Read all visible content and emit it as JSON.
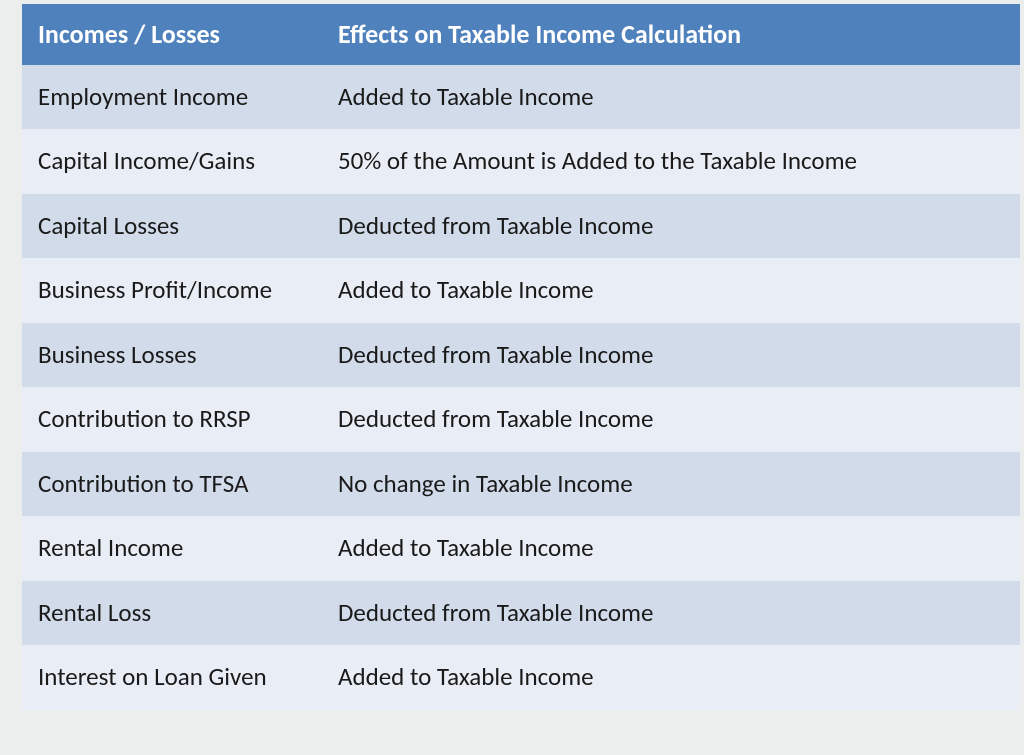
{
  "table": {
    "header_bg": "#4f81bd",
    "header_text_color": "#ffffff",
    "header_fontsize": 26,
    "row_odd_bg": "#d1dbea",
    "row_even_bg": "#e9edf5",
    "row_text_color": "#1a1a1a",
    "row_fontsize": 25,
    "columns": [
      "Incomes / Losses",
      "Effects on Taxable Income Calculation"
    ],
    "rows": [
      [
        "Employment Income",
        "Added to Taxable Income"
      ],
      [
        "Capital Income/Gains",
        "50% of the Amount is Added to the Taxable Income"
      ],
      [
        "Capital Losses",
        "Deducted from Taxable Income"
      ],
      [
        "Business Profit/Income",
        "Added to Taxable Income"
      ],
      [
        "Business Losses",
        "Deducted from Taxable Income"
      ],
      [
        "Contribution to RRSP",
        "Deducted from Taxable Income"
      ],
      [
        "Contribution to TFSA",
        "No change in Taxable Income"
      ],
      [
        "Rental Income",
        "Added to Taxable Income"
      ],
      [
        "Rental Loss",
        "Deducted from Taxable Income"
      ],
      [
        "Interest on Loan Given",
        "Added to Taxable Income"
      ]
    ]
  }
}
